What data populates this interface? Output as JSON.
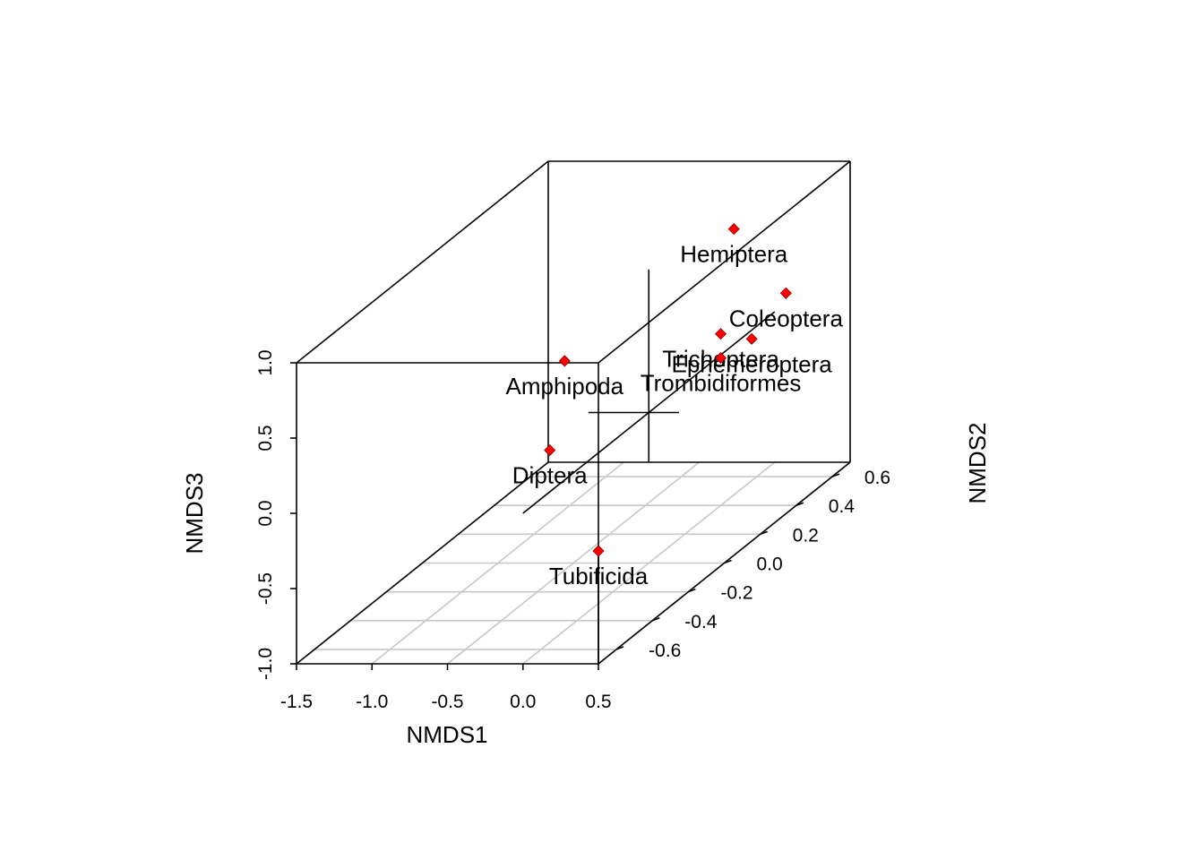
{
  "chart_data": {
    "type": "scatter3d",
    "xlabel": "NMDS1",
    "ylabel": "NMDS2",
    "zlabel": "NMDS3",
    "xlim": [
      -1.5,
      0.5
    ],
    "ylim": [
      -0.7,
      0.7
    ],
    "zlim": [
      -1.0,
      1.0
    ],
    "x_ticks": [
      "-1.5",
      "-1.0",
      "-0.5",
      "0.0",
      "0.5"
    ],
    "y_ticks": [
      "-0.6",
      "-0.4",
      "-0.2",
      "0.0",
      "0.2",
      "0.4",
      "0.6"
    ],
    "z_ticks": [
      "-1.0",
      "-0.5",
      "0.0",
      "0.5",
      "1.0"
    ],
    "point_color": "#ff0000",
    "points": [
      {
        "label": "Hemiptera",
        "x": -0.27,
        "y": 0.7,
        "z": 0.55
      },
      {
        "label": "Coleoptera",
        "x": 0.17,
        "y": 0.62,
        "z": 0.2
      },
      {
        "label": "Trichoptera",
        "x": 0.0,
        "y": 0.4,
        "z": 0.14
      },
      {
        "label": "Ephemeroptera",
        "x": 0.11,
        "y": 0.48,
        "z": 0.03
      },
      {
        "label": "Trombidiformes",
        "x": 0.0,
        "y": 0.4,
        "z": -0.02
      },
      {
        "label": "Amphipoda",
        "x": -0.2,
        "y": -0.3,
        "z": 0.63
      },
      {
        "label": "Diptera",
        "x": -0.12,
        "y": -0.45,
        "z": 0.18
      },
      {
        "label": "Tubificida",
        "x": 0.5,
        "y": -0.7,
        "z": -0.25
      }
    ],
    "crosshair_center": {
      "x": 0.0,
      "y": 0.0,
      "z": 0.0
    },
    "grid": true
  }
}
